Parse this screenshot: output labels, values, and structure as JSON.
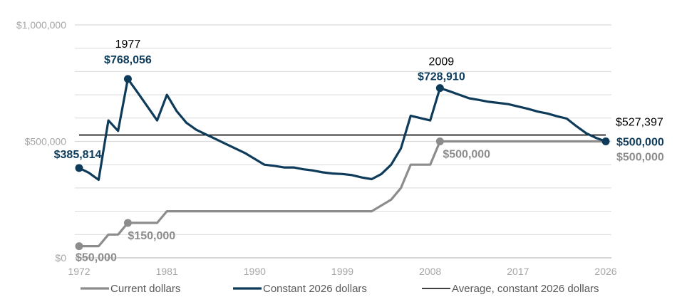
{
  "chart_data": {
    "type": "line",
    "title": "",
    "xlabel": "",
    "ylabel": "",
    "xlim": [
      1972,
      2026
    ],
    "ylim": [
      0,
      1000000
    ],
    "x_ticks": [
      1972,
      1981,
      1990,
      1999,
      2008,
      2017,
      2026
    ],
    "x_tick_labels": [
      "1972",
      "1981",
      "1990",
      "1999",
      "2008",
      "2017",
      "2026"
    ],
    "y_ticks": [
      0,
      500000,
      1000000
    ],
    "y_tick_labels": [
      "$0",
      "$500,000",
      "$1,000,000"
    ],
    "grid": "horizontal",
    "legend_position": "bottom",
    "colors": {
      "current": "#8c8c8c",
      "constant": "#0e3b5a",
      "average": "#000000",
      "grid": "#d9d9d9",
      "annotation_text": "#000000"
    },
    "series": [
      {
        "key": "current",
        "name": "Current dollars",
        "points": [
          [
            1972,
            50000
          ],
          [
            1974,
            50000
          ],
          [
            1975,
            100000
          ],
          [
            1976,
            100000
          ],
          [
            1977,
            150000
          ],
          [
            1980,
            150000
          ],
          [
            1981,
            200000
          ],
          [
            1984,
            200000
          ],
          [
            1990,
            200000
          ],
          [
            1996,
            200000
          ],
          [
            2002,
            200000
          ],
          [
            2004,
            250000
          ],
          [
            2005,
            300000
          ],
          [
            2006,
            400000
          ],
          [
            2008,
            400000
          ],
          [
            2009,
            500000
          ],
          [
            2026,
            500000
          ]
        ]
      },
      {
        "key": "constant",
        "name": "Constant 2026 dollars",
        "points": [
          [
            1972,
            385814
          ],
          [
            1973,
            365000
          ],
          [
            1974,
            335000
          ],
          [
            1975,
            590000
          ],
          [
            1976,
            545000
          ],
          [
            1977,
            768056
          ],
          [
            1978,
            710000
          ],
          [
            1979,
            650000
          ],
          [
            1980,
            590000
          ],
          [
            1981,
            700000
          ],
          [
            1982,
            630000
          ],
          [
            1983,
            580000
          ],
          [
            1984,
            550000
          ],
          [
            1985,
            530000
          ],
          [
            1986,
            510000
          ],
          [
            1987,
            490000
          ],
          [
            1988,
            470000
          ],
          [
            1989,
            450000
          ],
          [
            1990,
            425000
          ],
          [
            1991,
            400000
          ],
          [
            1992,
            395000
          ],
          [
            1993,
            388000
          ],
          [
            1994,
            388000
          ],
          [
            1995,
            380000
          ],
          [
            1996,
            375000
          ],
          [
            1997,
            367000
          ],
          [
            1998,
            362000
          ],
          [
            1999,
            360000
          ],
          [
            2000,
            355000
          ],
          [
            2001,
            345000
          ],
          [
            2002,
            338000
          ],
          [
            2003,
            360000
          ],
          [
            2004,
            400000
          ],
          [
            2005,
            470000
          ],
          [
            2006,
            610000
          ],
          [
            2007,
            600000
          ],
          [
            2008,
            590000
          ],
          [
            2009,
            728910
          ],
          [
            2010,
            715000
          ],
          [
            2011,
            700000
          ],
          [
            2012,
            685000
          ],
          [
            2013,
            678000
          ],
          [
            2014,
            670000
          ],
          [
            2015,
            665000
          ],
          [
            2016,
            660000
          ],
          [
            2017,
            650000
          ],
          [
            2018,
            640000
          ],
          [
            2019,
            628000
          ],
          [
            2020,
            620000
          ],
          [
            2021,
            608000
          ],
          [
            2022,
            598000
          ],
          [
            2023,
            565000
          ],
          [
            2024,
            535000
          ],
          [
            2025,
            515000
          ],
          [
            2026,
            500000
          ]
        ]
      },
      {
        "key": "average",
        "name": "Average, constant 2026 dollars",
        "value": 527397,
        "x_range": [
          1972,
          2026
        ]
      }
    ],
    "markers": [
      {
        "series": "current",
        "x": 1972,
        "y": 50000
      },
      {
        "series": "current",
        "x": 1977,
        "y": 150000
      },
      {
        "series": "current",
        "x": 2009,
        "y": 500000
      },
      {
        "series": "constant",
        "x": 1972,
        "y": 385814
      },
      {
        "series": "constant",
        "x": 1977,
        "y": 768056
      },
      {
        "series": "constant",
        "x": 2009,
        "y": 728910
      },
      {
        "series": "constant",
        "x": 2026,
        "y": 500000
      }
    ],
    "annotations": [
      {
        "id": "ann-1977-year",
        "text": "1977",
        "bold": false,
        "color_key": "annotation_text"
      },
      {
        "id": "ann-1977-value",
        "text": "$768,056",
        "bold": true,
        "color_key": "constant"
      },
      {
        "id": "ann-2009-year",
        "text": "2009",
        "bold": false,
        "color_key": "annotation_text"
      },
      {
        "id": "ann-2009-value",
        "text": "$728,910",
        "bold": true,
        "color_key": "constant"
      },
      {
        "id": "ann-1972-constant",
        "text": "$385,814",
        "bold": true,
        "color_key": "constant"
      },
      {
        "id": "ann-1972-current",
        "text": "$50,000",
        "bold": true,
        "color_key": "current"
      },
      {
        "id": "ann-1977-current",
        "text": "$150,000",
        "bold": true,
        "color_key": "current"
      },
      {
        "id": "ann-2009-current",
        "text": "$500,000",
        "bold": true,
        "color_key": "current"
      },
      {
        "id": "ann-average",
        "text": "$527,397",
        "bold": false,
        "color_key": "annotation_text"
      },
      {
        "id": "ann-2026-constant",
        "text": "$500,000",
        "bold": true,
        "color_key": "constant"
      },
      {
        "id": "ann-2026-current",
        "text": "$500,000",
        "bold": true,
        "color_key": "current"
      }
    ]
  }
}
